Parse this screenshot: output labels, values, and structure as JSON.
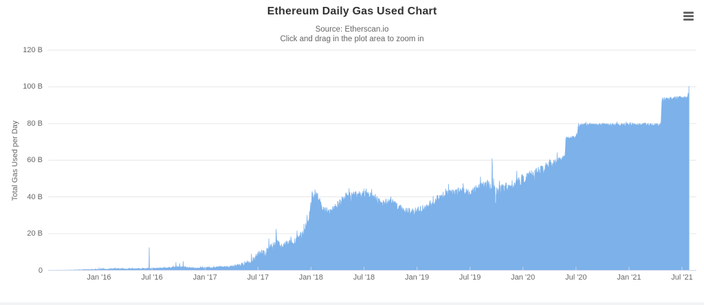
{
  "header": {
    "title": "Ethereum Daily Gas Used Chart",
    "subtitle_source": "Source: Etherscan.io",
    "subtitle_hint": "Click and drag in the plot area to zoom in",
    "menu_icon": "hamburger-menu-icon"
  },
  "colors": {
    "area_fill": "#7cb1ea",
    "gridline": "#e6e6e6",
    "axis_line": "#ccd6eb",
    "tick_mark": "#ccd6eb",
    "title_text": "#333333",
    "subtitle_text": "#666666",
    "axis_text": "#666666",
    "menu_icon": "#666666",
    "bottom_strip": "#f2f3f5"
  },
  "chart_data": {
    "type": "area",
    "title": "Ethereum Daily Gas Used Chart",
    "subtitle": [
      "Source: Etherscan.io",
      "Click and drag in the plot area to zoom in"
    ],
    "series_name": "Total Gas Used per Day",
    "xlabel": "",
    "ylabel": "Total Gas Used per Day",
    "unit": "B (billions of gas per day)",
    "ylim": [
      0,
      120
    ],
    "grid": true,
    "legend": "none",
    "y_ticks": [
      "120 B",
      "100 B",
      "80 B",
      "60 B",
      "40 B",
      "20 B",
      "0"
    ],
    "y_tick_values": [
      120,
      100,
      80,
      60,
      40,
      20,
      0
    ],
    "x_ticks": [
      "Jan '16",
      "Jul '16",
      "Jan '17",
      "Jul '17",
      "Jan '18",
      "Jul '18",
      "Jan '19",
      "Jul '19",
      "Jan '20",
      "Jul '20",
      "Jan '21",
      "Jul '21"
    ],
    "date_range": [
      "2015-08-01",
      "2021-07-25"
    ],
    "anchors_note": "value anchors read off chart: [date, gas_used_B_per_day, daily_jitter_B]",
    "anchors": [
      [
        "2015-08-01",
        0.04,
        0.03
      ],
      [
        "2015-09-01",
        0.07,
        0.05
      ],
      [
        "2015-10-01",
        0.12,
        0.08
      ],
      [
        "2015-11-01",
        0.25,
        0.15
      ],
      [
        "2015-12-01",
        0.35,
        0.2
      ],
      [
        "2016-01-01",
        0.55,
        0.3
      ],
      [
        "2016-02-01",
        0.6,
        0.25
      ],
      [
        "2016-03-01",
        0.8,
        0.3
      ],
      [
        "2016-04-01",
        0.7,
        0.25
      ],
      [
        "2016-05-01",
        0.75,
        0.25
      ],
      [
        "2016-06-01",
        0.9,
        0.3
      ],
      [
        "2016-07-01",
        1.0,
        0.35
      ],
      [
        "2016-08-01",
        1.0,
        0.3
      ],
      [
        "2016-09-01",
        1.5,
        0.6
      ],
      [
        "2016-10-01",
        1.7,
        0.8
      ],
      [
        "2016-11-01",
        1.2,
        0.4
      ],
      [
        "2016-12-01",
        1.1,
        0.3
      ],
      [
        "2017-01-01",
        1.3,
        0.35
      ],
      [
        "2017-02-01",
        1.4,
        0.35
      ],
      [
        "2017-03-01",
        1.8,
        0.5
      ],
      [
        "2017-04-01",
        2.0,
        0.5
      ],
      [
        "2017-05-01",
        2.8,
        0.8
      ],
      [
        "2017-06-01",
        4.5,
        1.5
      ],
      [
        "2017-07-01",
        8.0,
        2.2
      ],
      [
        "2017-08-01",
        10.0,
        2.5
      ],
      [
        "2017-09-01",
        14.5,
        3.0
      ],
      [
        "2017-10-01",
        13.5,
        2.0
      ],
      [
        "2017-11-01",
        15.5,
        2.0
      ],
      [
        "2017-12-01",
        19.0,
        2.5
      ],
      [
        "2017-12-22",
        26.0,
        3.0
      ],
      [
        "2018-01-03",
        40.0,
        2.5
      ],
      [
        "2018-01-20",
        41.5,
        2.0
      ],
      [
        "2018-02-10",
        33.0,
        2.5
      ],
      [
        "2018-03-05",
        31.5,
        2.0
      ],
      [
        "2018-04-01",
        35.0,
        2.5
      ],
      [
        "2018-05-01",
        40.5,
        2.0
      ],
      [
        "2018-06-01",
        41.0,
        2.0
      ],
      [
        "2018-07-01",
        41.5,
        2.0
      ],
      [
        "2018-08-01",
        40.5,
        2.5
      ],
      [
        "2018-09-01",
        36.0,
        2.5
      ],
      [
        "2018-10-01",
        38.0,
        2.0
      ],
      [
        "2018-11-01",
        33.5,
        2.5
      ],
      [
        "2018-12-01",
        31.5,
        2.5
      ],
      [
        "2019-01-01",
        32.0,
        2.5
      ],
      [
        "2019-02-01",
        34.0,
        2.5
      ],
      [
        "2019-03-01",
        37.5,
        2.5
      ],
      [
        "2019-04-01",
        40.5,
        2.5
      ],
      [
        "2019-05-01",
        42.0,
        2.5
      ],
      [
        "2019-06-01",
        43.0,
        2.5
      ],
      [
        "2019-07-01",
        42.0,
        2.5
      ],
      [
        "2019-08-01",
        44.0,
        3.0
      ],
      [
        "2019-09-01",
        46.5,
        3.0
      ],
      [
        "2019-10-01",
        44.0,
        3.0
      ],
      [
        "2019-11-01",
        45.0,
        3.0
      ],
      [
        "2019-12-01",
        46.0,
        3.0
      ],
      [
        "2020-01-01",
        49.5,
        3.0
      ],
      [
        "2020-02-01",
        52.0,
        3.0
      ],
      [
        "2020-03-01",
        54.0,
        3.5
      ],
      [
        "2020-04-01",
        57.0,
        3.0
      ],
      [
        "2020-05-01",
        59.5,
        2.0
      ],
      [
        "2020-05-24",
        61.5,
        1.5
      ],
      [
        "2020-05-27",
        72.0,
        1.0
      ],
      [
        "2020-07-05",
        72.5,
        1.0
      ],
      [
        "2020-07-09",
        78.5,
        0.9
      ],
      [
        "2020-08-01",
        79.3,
        0.8
      ],
      [
        "2020-10-01",
        79.3,
        0.8
      ],
      [
        "2020-12-01",
        79.2,
        0.9
      ],
      [
        "2021-02-01",
        79.3,
        0.8
      ],
      [
        "2021-04-20",
        79.4,
        0.8
      ],
      [
        "2021-04-23",
        93.0,
        1.0
      ],
      [
        "2021-06-01",
        93.5,
        1.0
      ],
      [
        "2021-07-20",
        94.5,
        1.0
      ],
      [
        "2021-07-24",
        95.0,
        0.5
      ]
    ],
    "spike_events_note": "notable single-day spikes read off chart: [date, gas_used_B]",
    "spike_events": [
      [
        "2016-06-22",
        12.5
      ],
      [
        "2016-09-22",
        4.5
      ],
      [
        "2016-10-05",
        3.8
      ],
      [
        "2016-10-17",
        5.0
      ],
      [
        "2017-09-02",
        22.5
      ],
      [
        "2017-09-03",
        19.5
      ],
      [
        "2018-01-04",
        43.0
      ],
      [
        "2018-07-02",
        44.5
      ],
      [
        "2019-09-16",
        61.0
      ],
      [
        "2019-09-17",
        57.0
      ],
      [
        "2021-07-25",
        100.5
      ]
    ]
  }
}
